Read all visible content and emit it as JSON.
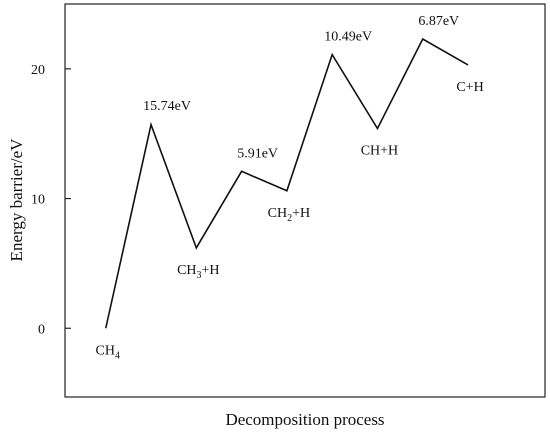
{
  "chart_data": {
    "type": "line",
    "xlabel": "Decomposition process",
    "ylabel": "Energy barrier/eV",
    "y_ticks": [
      "0",
      "10",
      "20"
    ],
    "ylim": [
      -5.3,
      25
    ],
    "x_ticks": [],
    "grid": false,
    "series": [
      {
        "points": [
          {
            "x": 1,
            "y": 0
          },
          {
            "x": 2,
            "y": 15.7
          },
          {
            "x": 3,
            "y": 6.2
          },
          {
            "x": 4,
            "y": 12.1
          },
          {
            "x": 5,
            "y": 10.6
          },
          {
            "x": 6,
            "y": 21.1
          },
          {
            "x": 7,
            "y": 15.4
          },
          {
            "x": 8,
            "y": 22.3
          },
          {
            "x": 9,
            "y": 20.3
          }
        ]
      }
    ],
    "xlim": [
      0.1,
      10.7
    ],
    "annotations": [
      {
        "text": "15.74eV",
        "x": 2,
        "y": 15.74,
        "pos": "above"
      },
      {
        "text": "5.91eV",
        "x": 4,
        "y": 12.1,
        "pos": "above"
      },
      {
        "text": "10.49eV",
        "x": 6,
        "y": 21.1,
        "pos": "above"
      },
      {
        "text": "6.87eV",
        "x": 8,
        "y": 22.3,
        "pos": "above"
      }
    ],
    "species": [
      {
        "main": "CH",
        "sub": "4",
        "rest": "",
        "x": 1,
        "y": 0,
        "pos": "below"
      },
      {
        "main": "CH",
        "sub": "3",
        "rest": "+H",
        "x": 3,
        "y": 6.2,
        "pos": "below"
      },
      {
        "main": "CH",
        "sub": "2",
        "rest": "+H",
        "x": 5,
        "y": 10.6,
        "pos": "below"
      },
      {
        "main": "CH+H",
        "sub": "",
        "rest": "",
        "x": 7,
        "y": 15.4,
        "pos": "below"
      },
      {
        "main": "C+H",
        "sub": "",
        "rest": "",
        "x": 9,
        "y": 20.3,
        "pos": "below"
      }
    ]
  }
}
